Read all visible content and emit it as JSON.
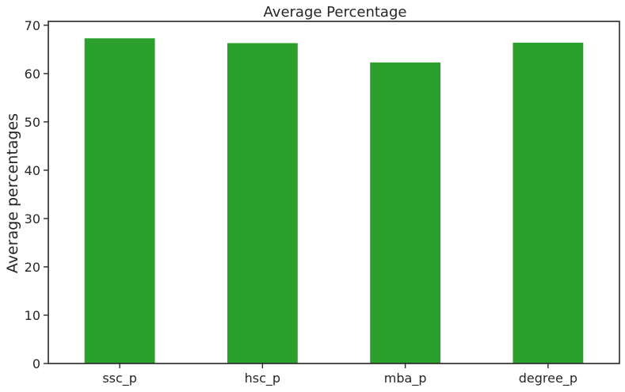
{
  "chart_data": {
    "type": "bar",
    "title": "Average Percentage",
    "xlabel": "",
    "ylabel": "Average percentages",
    "categories": [
      "ssc_p",
      "hsc_p",
      "mba_p",
      "degree_p"
    ],
    "values": [
      67.3,
      66.3,
      62.3,
      66.4
    ],
    "ylim": [
      0,
      70.8
    ],
    "yticks": [
      0,
      10,
      20,
      30,
      40,
      50,
      60,
      70
    ],
    "bar_color": "#2ca02c",
    "grid": false,
    "legend": "none"
  }
}
